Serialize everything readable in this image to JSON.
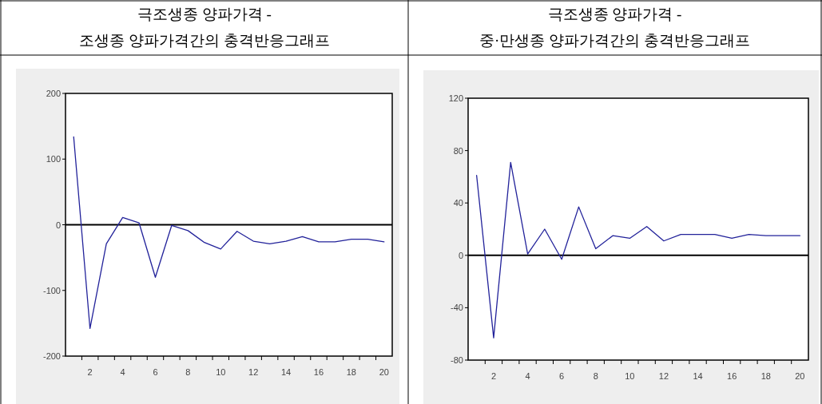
{
  "chart_data": [
    {
      "type": "line",
      "title": "극조생종 양파가격 -",
      "subtitle": "조생종 양파가격간의 충격반응그래프",
      "x": [
        1,
        2,
        3,
        4,
        5,
        6,
        7,
        8,
        9,
        10,
        11,
        12,
        13,
        14,
        15,
        16,
        17,
        18,
        19,
        20
      ],
      "series": [
        {
          "color": "#22229a",
          "values": [
            134,
            -158,
            -29,
            11,
            3,
            -80,
            -1,
            -9,
            -27,
            -37,
            -10,
            -25,
            -29,
            -25,
            -18,
            -26,
            -26,
            -22,
            -22,
            -26
          ]
        }
      ],
      "xlim": [
        0.5,
        20.5
      ],
      "xticks": [
        {
          "value": 1.5,
          "label": null
        },
        2,
        {
          "value": 2.5,
          "label": null
        },
        {
          "value": 3.5,
          "label": null
        },
        4,
        {
          "value": 4.5,
          "label": null
        },
        {
          "value": 5.5,
          "label": null
        },
        6,
        {
          "value": 6.5,
          "label": null
        },
        {
          "value": 7.5,
          "label": null
        },
        8,
        {
          "value": 8.5,
          "label": null
        },
        {
          "value": 9.5,
          "label": null
        },
        10,
        {
          "value": 10.5,
          "label": null
        },
        {
          "value": 11.5,
          "label": null
        },
        12,
        {
          "value": 12.5,
          "label": null
        },
        {
          "value": 13.5,
          "label": null
        },
        14,
        {
          "value": 14.5,
          "label": null
        },
        {
          "value": 15.5,
          "label": null
        },
        16,
        {
          "value": 16.5,
          "label": null
        },
        {
          "value": 17.5,
          "label": null
        },
        18,
        {
          "value": 18.5,
          "label": null
        },
        {
          "value": 19.5,
          "label": null
        },
        20
      ],
      "ylim": [
        -200,
        200
      ],
      "yticks": [
        -200,
        -100,
        0,
        100,
        200
      ],
      "ref_lines": [
        {
          "axis": "y",
          "value": 0,
          "color": "#000000"
        }
      ],
      "grid": false
    },
    {
      "type": "line",
      "title": "극조생종 양파가격 -",
      "subtitle": "중·만생종 양파가격간의 충격반응그래프",
      "x": [
        1,
        2,
        3,
        4,
        5,
        6,
        7,
        8,
        9,
        10,
        11,
        12,
        13,
        14,
        15,
        16,
        17,
        18,
        19,
        20
      ],
      "series": [
        {
          "color": "#22229a",
          "values": [
            61,
            -63,
            71,
            1,
            20,
            -3,
            37,
            5,
            15,
            13,
            22,
            11,
            16,
            16,
            16,
            13,
            16,
            15,
            15,
            15
          ]
        }
      ],
      "xlim": [
        0.5,
        20.5
      ],
      "xticks": [
        {
          "value": 1.5,
          "label": null
        },
        2,
        {
          "value": 2.5,
          "label": null
        },
        {
          "value": 3.5,
          "label": null
        },
        4,
        {
          "value": 4.5,
          "label": null
        },
        {
          "value": 5.5,
          "label": null
        },
        6,
        {
          "value": 6.5,
          "label": null
        },
        {
          "value": 7.5,
          "label": null
        },
        8,
        {
          "value": 8.5,
          "label": null
        },
        {
          "value": 9.5,
          "label": null
        },
        10,
        {
          "value": 10.5,
          "label": null
        },
        {
          "value": 11.5,
          "label": null
        },
        12,
        {
          "value": 12.5,
          "label": null
        },
        {
          "value": 13.5,
          "label": null
        },
        14,
        {
          "value": 14.5,
          "label": null
        },
        {
          "value": 15.5,
          "label": null
        },
        16,
        {
          "value": 16.5,
          "label": null
        },
        {
          "value": 17.5,
          "label": null
        },
        18,
        {
          "value": 18.5,
          "label": null
        },
        {
          "value": 19.5,
          "label": null
        },
        20
      ],
      "ylim": [
        -80,
        120
      ],
      "yticks": [
        -80,
        -40,
        0,
        40,
        80,
        120
      ],
      "ref_lines": [
        {
          "axis": "y",
          "value": 0,
          "color": "#000000"
        }
      ],
      "grid": false
    }
  ]
}
